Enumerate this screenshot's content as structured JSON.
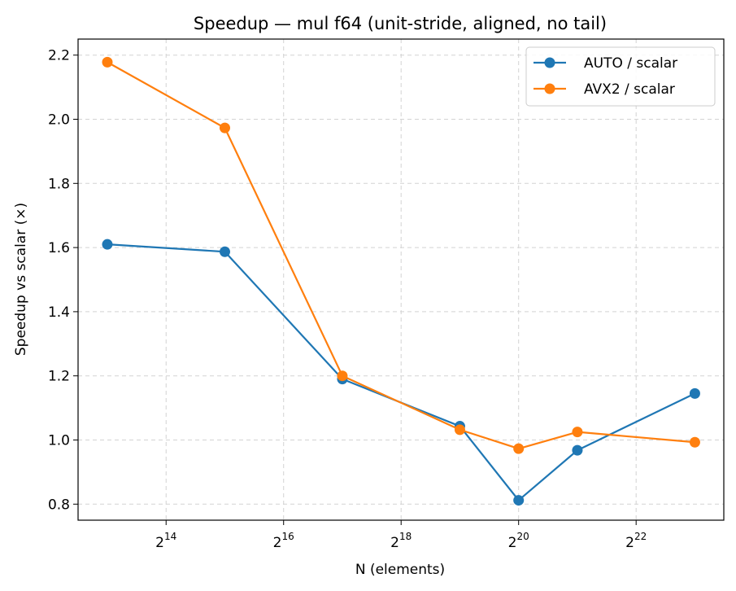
{
  "chart_data": {
    "type": "line",
    "title": "Speedup — mul f64 (unit-stride, aligned, no tail)",
    "xlabel": "N (elements)",
    "ylabel": "Speedup vs scalar (×)",
    "x_scale": "log2",
    "x": [
      8192,
      32768,
      131072,
      524288,
      1048576,
      2097152,
      8388608
    ],
    "xlim": [
      5800,
      11800000
    ],
    "ylim": [
      0.75,
      2.25
    ],
    "x_ticks": [
      {
        "value": 16384,
        "base": "2",
        "exp": "14"
      },
      {
        "value": 65536,
        "base": "2",
        "exp": "16"
      },
      {
        "value": 262144,
        "base": "2",
        "exp": "18"
      },
      {
        "value": 1048576,
        "base": "2",
        "exp": "20"
      },
      {
        "value": 4194304,
        "base": "2",
        "exp": "22"
      }
    ],
    "y_ticks": [
      0.8,
      1.0,
      1.2,
      1.4,
      1.6,
      1.8,
      2.0,
      2.2
    ],
    "grid": true,
    "legend_position": "top-right",
    "series": [
      {
        "name": "AUTO / scalar",
        "color": "#1f77b4",
        "values": [
          1.61,
          1.587,
          1.19,
          1.043,
          0.812,
          0.968,
          1.145
        ]
      },
      {
        "name": "AVX2 / scalar",
        "color": "#ff7f0e",
        "values": [
          2.178,
          1.973,
          1.2,
          1.032,
          0.973,
          1.025,
          0.993
        ]
      }
    ]
  }
}
